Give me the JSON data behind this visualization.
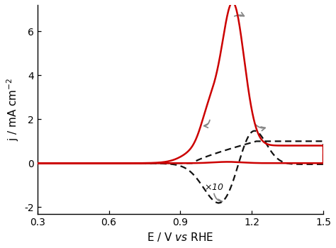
{
  "xlim": [
    0.3,
    1.5
  ],
  "ylim": [
    -2.3,
    7.2
  ],
  "xticks": [
    0.3,
    0.6,
    0.9,
    1.2,
    1.5
  ],
  "yticks": [
    -2,
    0,
    2,
    4,
    6
  ],
  "xlabel": "E / V vs RHE",
  "ylabel": "j / mA cm$^{-2}$",
  "red_color": "#cc0000",
  "black_color": "#111111",
  "arrow_color": "#888888",
  "background_color": "#ffffff"
}
